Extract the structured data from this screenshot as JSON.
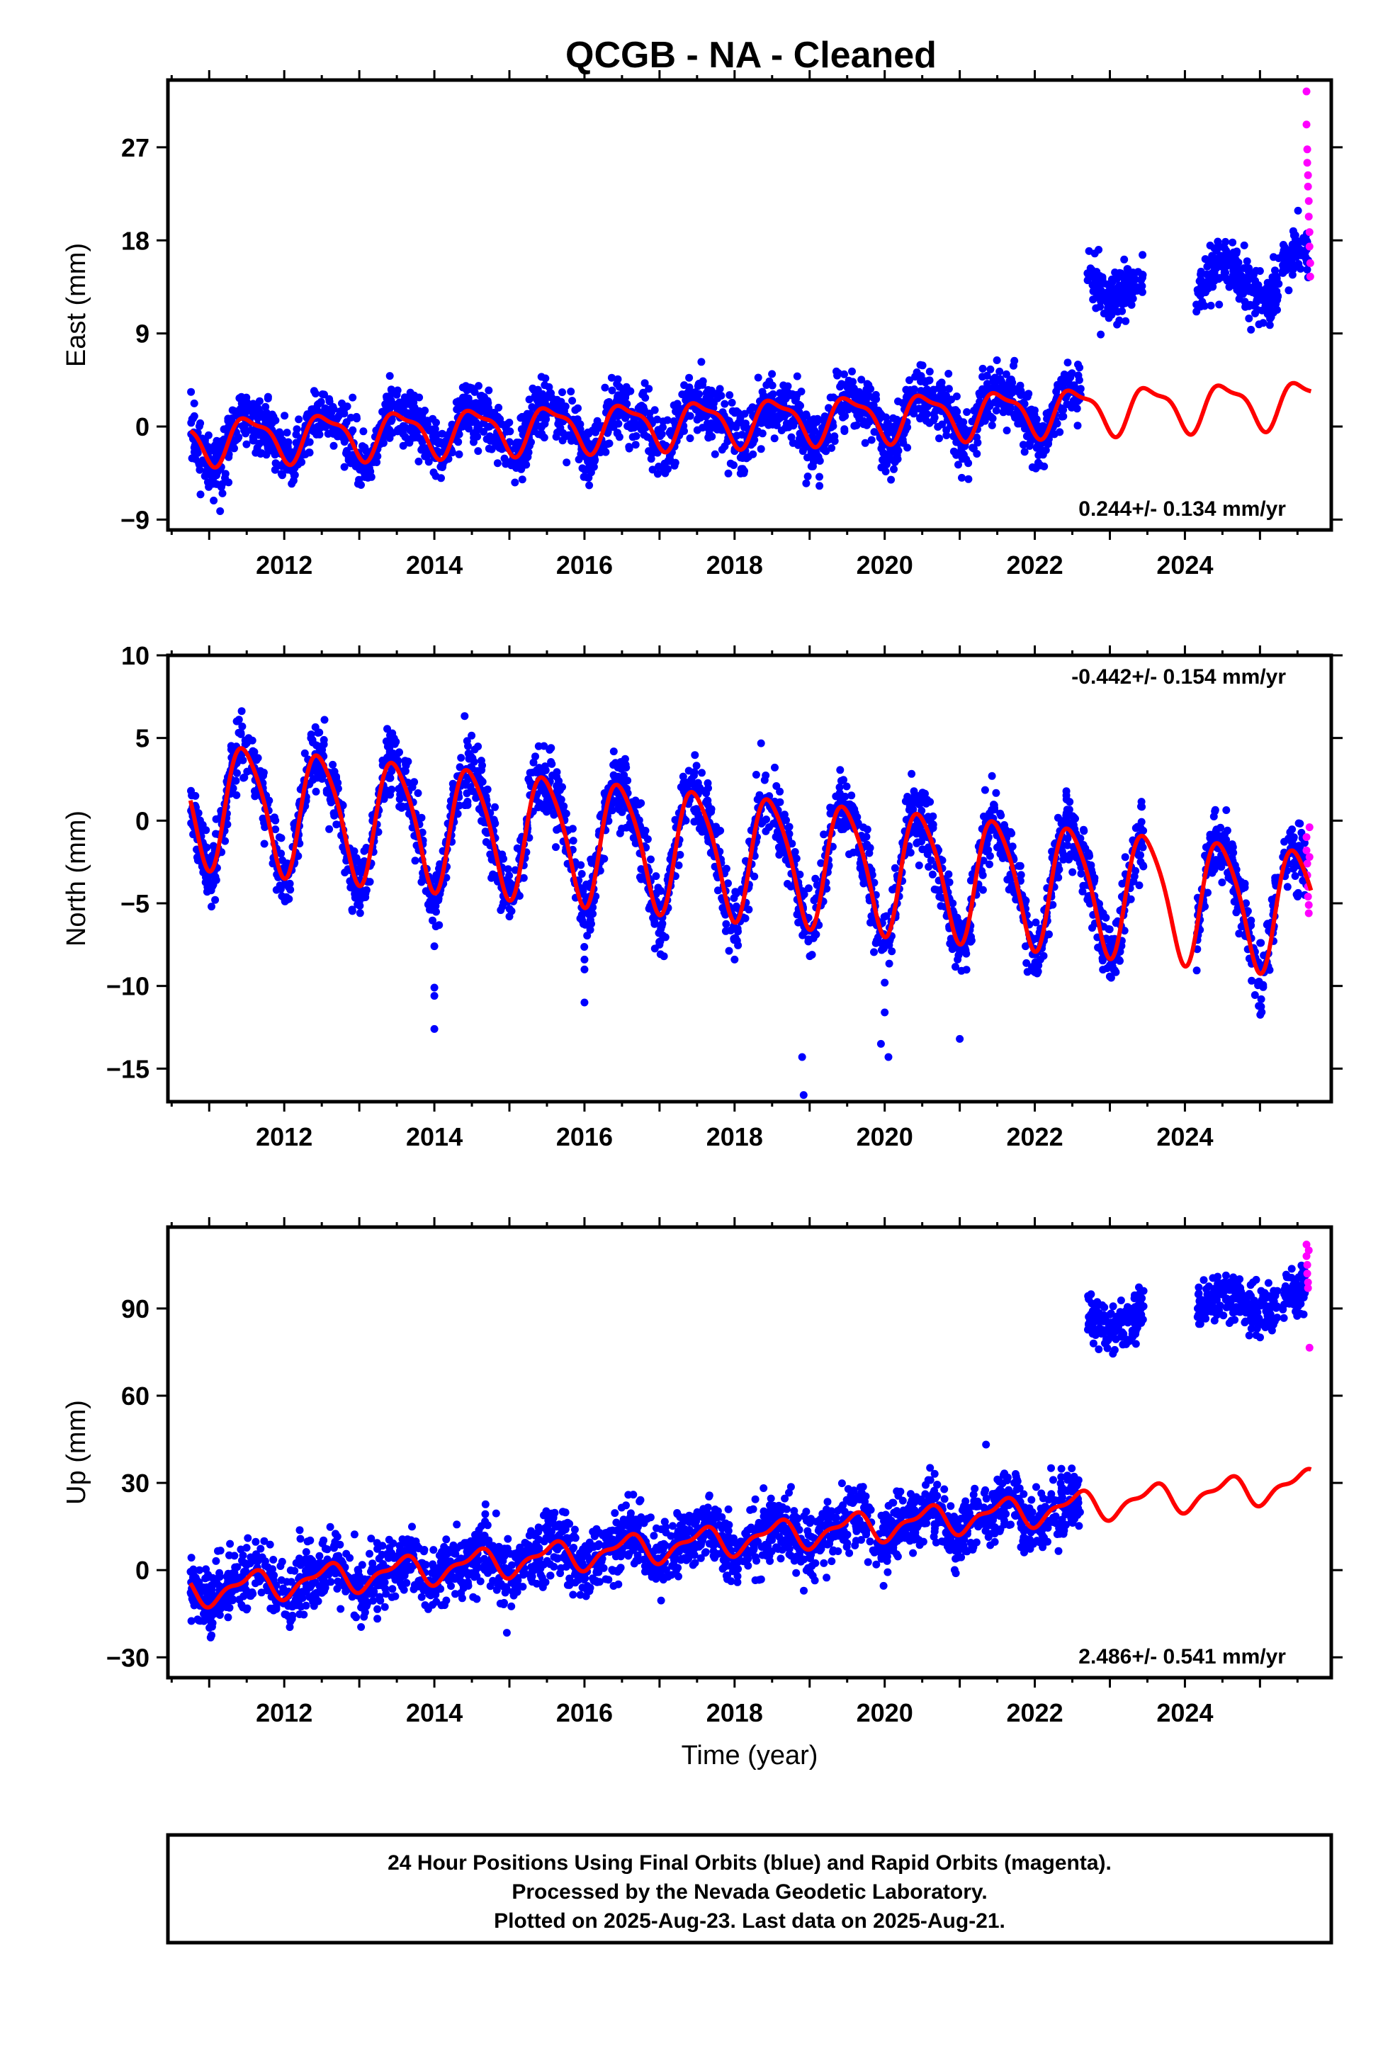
{
  "title": "QCGB  - NA - Cleaned",
  "colors": {
    "final": "#0000ff",
    "rapid": "#ff00ff",
    "model": "#ff0000",
    "frame": "#000000"
  },
  "chart_data": [
    {
      "type": "scatter",
      "component": "east",
      "ylabel": "East (mm)",
      "xlim": [
        2010.45,
        2025.95
      ],
      "ylim": [
        -10,
        33.5
      ],
      "xticks": [
        2012,
        2014,
        2016,
        2018,
        2020,
        2022,
        2024
      ],
      "yticks": [
        -9,
        0,
        9,
        18,
        27
      ],
      "ytick_labels": [
        "−9",
        "0",
        "9",
        "18",
        "27"
      ],
      "rate_label": "0.244+/- 0.134 mm/yr",
      "rate_position": "bottom-right",
      "data_start": 2010.75,
      "data_gap": [
        2022.6,
        2022.6
      ],
      "series": [
        {
          "name": "Final Orbits",
          "color": "final",
          "x_range": [
            2010.75,
            2022.62
          ],
          "offset": 0,
          "trend": 0.244,
          "base": -1.3,
          "amp": 2.3,
          "noise": 1.4
        },
        {
          "name": "Final Orbits",
          "color": "final",
          "x_range": [
            2022.7,
            2023.45
          ],
          "offset": 14.0,
          "trend": 0.244,
          "base": 0,
          "amp": 1.5,
          "noise": 1.3
        },
        {
          "name": "Final Orbits",
          "color": "final",
          "x_range": [
            2024.15,
            2025.25
          ],
          "offset": 14.0,
          "trend": 0.244,
          "base": 0,
          "amp": 1.5,
          "noise": 1.3
        },
        {
          "name": "Final Orbits",
          "color": "final",
          "x_range": [
            2025.3,
            2025.65
          ],
          "offset": 15.5,
          "trend": 0.244,
          "base": 0,
          "amp": 1.5,
          "noise": 1.1
        },
        {
          "name": "Rapid Orbits",
          "color": "rapid",
          "points": [
            [
              2025.62,
              32.4
            ],
            [
              2025.62,
              29.2
            ],
            [
              2025.63,
              26.8
            ],
            [
              2025.63,
              25.5
            ],
            [
              2025.64,
              24.3
            ],
            [
              2025.64,
              23.2
            ],
            [
              2025.65,
              21.8
            ],
            [
              2025.65,
              20.3
            ],
            [
              2025.66,
              18.8
            ],
            [
              2025.66,
              17.4
            ],
            [
              2025.67,
              15.8
            ],
            [
              2025.67,
              14.5
            ]
          ]
        }
      ],
      "model": {
        "t0": 2010.75,
        "base": -1.3,
        "trend": 0.244,
        "annual_amp": 2.1,
        "annual_phase": 2011.55,
        "semi_amp": 0.7,
        "semi_phase": 2011.35,
        "end": 2025.68
      }
    },
    {
      "type": "scatter",
      "component": "north",
      "ylabel": "North (mm)",
      "xlim": [
        2010.45,
        2025.95
      ],
      "ylim": [
        -17,
        10
      ],
      "xticks": [
        2012,
        2014,
        2016,
        2018,
        2020,
        2022,
        2024
      ],
      "yticks": [
        -15,
        -10,
        -5,
        0,
        5,
        10
      ],
      "ytick_labels": [
        "−15",
        "−10",
        "−5",
        "0",
        "5",
        "10"
      ],
      "rate_label": "-0.442+/- 0.154 mm/yr",
      "rate_position": "top-right",
      "series": [
        {
          "name": "Final Orbits",
          "color": "final",
          "x_range": [
            2010.75,
            2022.62
          ],
          "offset": 0,
          "trend": -0.442,
          "base": 1.2,
          "amp": 3.7,
          "noise": 1.0
        },
        {
          "name": "Final Orbits",
          "color": "final",
          "x_range": [
            2022.62,
            2023.45
          ],
          "offset": 0,
          "trend": -0.442,
          "base": 1.2,
          "amp": 3.7,
          "noise": 1.0
        },
        {
          "name": "Final Orbits",
          "color": "final",
          "x_range": [
            2024.15,
            2025.25
          ],
          "offset": 0,
          "trend": -0.442,
          "base": 1.2,
          "amp": 3.7,
          "noise": 1.0
        },
        {
          "name": "Final Orbits",
          "color": "final",
          "x_range": [
            2025.3,
            2025.62
          ],
          "offset": 0,
          "trend": -0.442,
          "base": 1.2,
          "amp": 3.7,
          "noise": 1.0
        },
        {
          "name": "Rapid Orbits",
          "color": "rapid",
          "points": [
            [
              2025.62,
              -1.0
            ],
            [
              2025.62,
              -1.8
            ],
            [
              2025.63,
              -2.6
            ],
            [
              2025.63,
              -3.3
            ],
            [
              2025.64,
              -4.0
            ],
            [
              2025.64,
              -4.6
            ],
            [
              2025.65,
              -5.1
            ],
            [
              2025.65,
              -5.6
            ],
            [
              2025.66,
              -2.2
            ],
            [
              2025.66,
              -0.4
            ]
          ]
        }
      ],
      "outliers": [
        [
          2014.0,
          -7.6
        ],
        [
          2014.0,
          -10.1
        ],
        [
          2014.0,
          -10.6
        ],
        [
          2014.0,
          -12.6
        ],
        [
          2016.0,
          -8.4
        ],
        [
          2016.0,
          -9.0
        ],
        [
          2016.0,
          -11.0
        ],
        [
          2017.0,
          -7.5
        ],
        [
          2018.0,
          -8.4
        ],
        [
          2018.9,
          -14.3
        ],
        [
          2018.92,
          -16.6
        ],
        [
          2020.0,
          -9.8
        ],
        [
          2020.0,
          -11.6
        ],
        [
          2019.95,
          -13.5
        ],
        [
          2020.05,
          -14.3
        ],
        [
          2021.0,
          -13.2
        ],
        [
          2012.0,
          -4.7
        ],
        [
          2013.0,
          -4.9
        ],
        [
          2015.0,
          -5.8
        ],
        [
          2014.0,
          -4.8
        ]
      ],
      "model": {
        "t0": 2010.75,
        "base": 1.2,
        "trend": -0.442,
        "annual_amp": 3.7,
        "annual_phase": 2011.48,
        "semi_amp": 0.6,
        "semi_phase": 2011.3,
        "end": 2025.68
      }
    },
    {
      "type": "scatter",
      "component": "up",
      "ylabel": "Up (mm)",
      "xlim": [
        2010.45,
        2025.95
      ],
      "ylim": [
        -37,
        118
      ],
      "xticks": [
        2012,
        2014,
        2016,
        2018,
        2020,
        2022,
        2024
      ],
      "yticks": [
        -30,
        0,
        30,
        60,
        90
      ],
      "ytick_labels": [
        "−30",
        "0",
        "30",
        "60",
        "90"
      ],
      "xlabel": "Time (year)",
      "rate_label": "2.486+/- 0.541 mm/yr",
      "rate_position": "bottom-right",
      "series": [
        {
          "name": "Final Orbits",
          "color": "final",
          "x_range": [
            2010.75,
            2022.62
          ],
          "offset": 0,
          "trend": 2.486,
          "base": -8,
          "amp": 4.5,
          "noise": 5.5
        },
        {
          "name": "Final Orbits",
          "color": "final",
          "x_range": [
            2022.7,
            2023.45
          ],
          "offset": 86,
          "trend": 0.3,
          "base": 0,
          "amp": 3.0,
          "noise": 4.0
        },
        {
          "name": "Final Orbits",
          "color": "final",
          "x_range": [
            2024.15,
            2025.25
          ],
          "offset": 92,
          "trend": 0.3,
          "base": 0,
          "amp": 3.0,
          "noise": 4.0
        },
        {
          "name": "Final Orbits",
          "color": "final",
          "x_range": [
            2025.3,
            2025.62
          ],
          "offset": 94,
          "trend": 0.3,
          "base": 0,
          "amp": 3.0,
          "noise": 4.0
        },
        {
          "name": "Rapid Orbits",
          "color": "rapid",
          "points": [
            [
              2025.62,
              112
            ],
            [
              2025.62,
              108
            ],
            [
              2025.63,
              105
            ],
            [
              2025.63,
              102
            ],
            [
              2025.64,
              99
            ],
            [
              2025.64,
              97
            ],
            [
              2025.65,
              110
            ],
            [
              2025.66,
              76.5
            ]
          ]
        }
      ],
      "model": {
        "t0": 2010.75,
        "base": -7.5,
        "trend": 2.486,
        "annual_amp": 4.5,
        "annual_phase": 2011.55,
        "semi_amp": 2.0,
        "semi_phase": 2011.2,
        "end": 2025.68
      }
    }
  ],
  "footer": {
    "line1": "24 Hour Positions Using Final Orbits (blue) and Rapid Orbits (magenta).",
    "line2": "Processed by the Nevada Geodetic Laboratory.",
    "line3": "Plotted on 2025-Aug-23. Last data on 2025-Aug-21."
  }
}
